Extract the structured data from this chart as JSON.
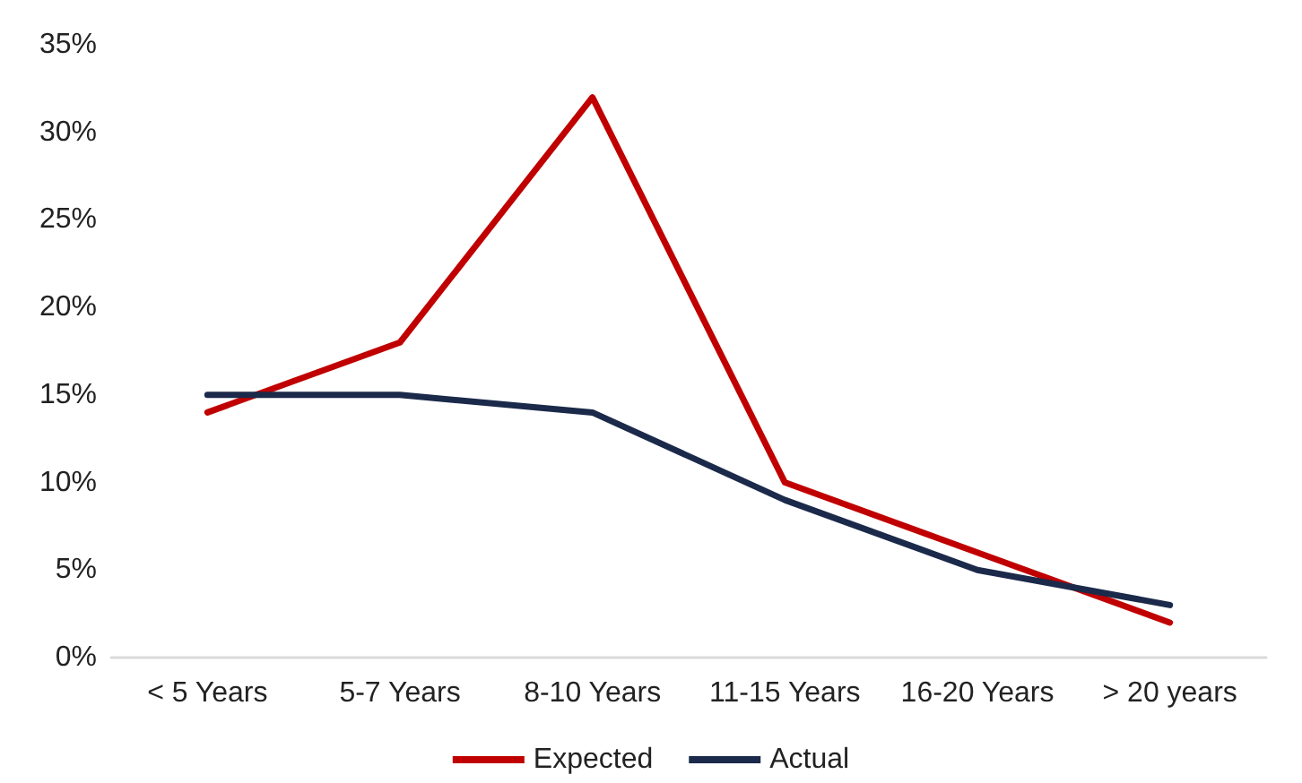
{
  "chart_data": {
    "type": "line",
    "categories": [
      "< 5 Years",
      "5-7 Years",
      "8-10 Years",
      "11-15 Years",
      "16-20 Years",
      "> 20 years"
    ],
    "series": [
      {
        "name": "Expected",
        "color": "#c00000",
        "values": [
          14,
          18,
          32,
          10,
          6,
          2
        ]
      },
      {
        "name": "Actual",
        "color": "#1b2a4a",
        "values": [
          15,
          15,
          14,
          9,
          5,
          3
        ]
      }
    ],
    "ylim": [
      0,
      35
    ],
    "yticks": [
      {
        "value": 0,
        "label": "0%"
      },
      {
        "value": 5,
        "label": "5%"
      },
      {
        "value": 10,
        "label": "10%"
      },
      {
        "value": 15,
        "label": "15%"
      },
      {
        "value": 20,
        "label": "20%"
      },
      {
        "value": 25,
        "label": "25%"
      },
      {
        "value": 30,
        "label": "30%"
      },
      {
        "value": 35,
        "label": "35%"
      }
    ],
    "grid": false,
    "legend": "bottom",
    "marker": "none",
    "line_style": "solid"
  }
}
